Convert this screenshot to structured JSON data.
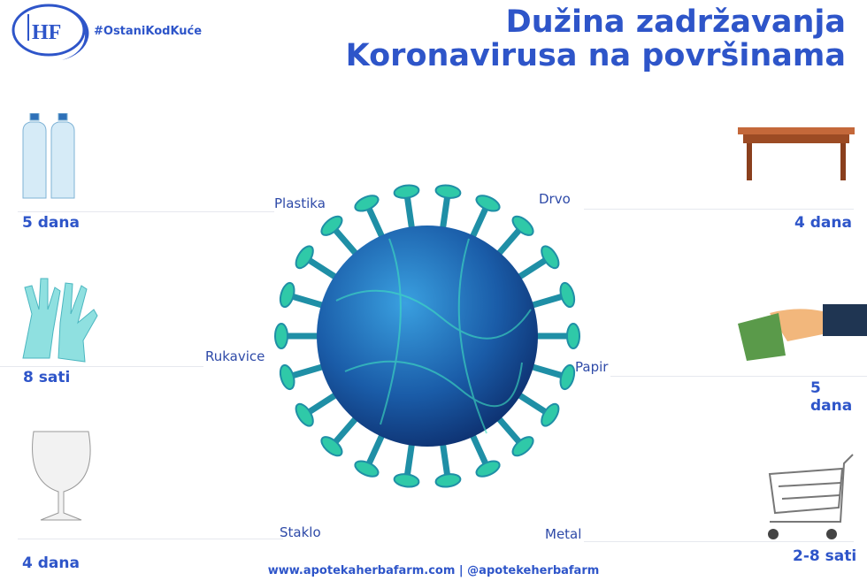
{
  "header": {
    "title_line1": "Dužina zadržavanja",
    "title_line2": "Koronavirusa na površinama",
    "hashtag": "#OstaniKodKuće",
    "logo_text": "HF"
  },
  "surfaces": [
    {
      "label": "Plastika",
      "duration": "5 dana",
      "icon": "plastic-bottles-icon"
    },
    {
      "label": "Rukavice",
      "duration": "8 sati",
      "icon": "gloves-icon"
    },
    {
      "label": "Staklo",
      "duration": "4 dana",
      "icon": "glass-icon"
    },
    {
      "label": "Drvo",
      "duration": "4 dana",
      "icon": "wooden-table-icon"
    },
    {
      "label": "Papir",
      "duration": "5 dana",
      "icon": "paper-money-icon"
    },
    {
      "label": "Metal",
      "duration": "2-8 sati",
      "icon": "shopping-cart-icon"
    }
  ],
  "footer": {
    "text": "www.apotekaherbafarm.com | @apotekeherbafarm"
  },
  "colors": {
    "brand": "#2e55c9",
    "virus": "#1e6fb0",
    "spike": "#2fc9a8"
  }
}
